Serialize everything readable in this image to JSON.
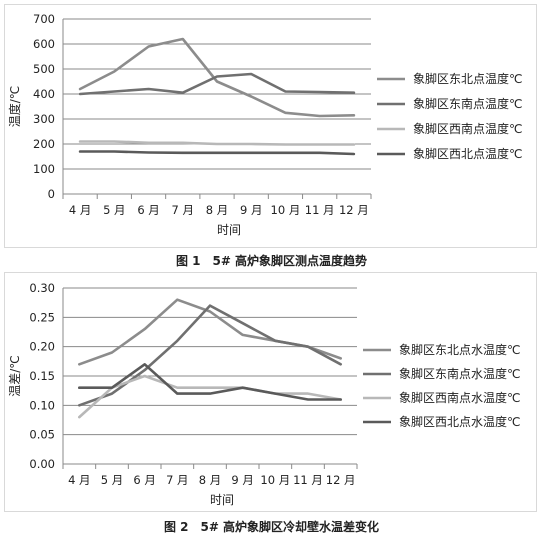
{
  "chart_data": [
    {
      "type": "line",
      "caption": "图 1　5# 高炉象脚区测点温度趋势",
      "xlabel": "时间",
      "ylabel": "温度/℃",
      "categories": [
        "4 月",
        "5 月",
        "6 月",
        "7 月",
        "8 月",
        "9 月",
        "10 月",
        "11 月",
        "12 月"
      ],
      "ylim": [
        0,
        700
      ],
      "yticks": [
        "0",
        "100",
        "200",
        "300",
        "400",
        "500",
        "600",
        "700"
      ],
      "grid": true,
      "legend_position": "right",
      "series": [
        {
          "name": "象脚区东北点温度℃",
          "color": "#8c8c8c",
          "values": [
            420,
            490,
            590,
            620,
            450,
            390,
            325,
            312,
            315
          ]
        },
        {
          "name": "象脚区东南点温度℃",
          "color": "#707070",
          "values": [
            400,
            410,
            420,
            405,
            470,
            480,
            410,
            408,
            405
          ]
        },
        {
          "name": "象脚区西南点温度℃",
          "color": "#b8b8b8",
          "values": [
            210,
            210,
            205,
            205,
            200,
            200,
            198,
            198,
            198
          ]
        },
        {
          "name": "象脚区西北点温度℃",
          "color": "#5a5a5a",
          "values": [
            170,
            170,
            166,
            165,
            165,
            165,
            165,
            165,
            160
          ]
        }
      ]
    },
    {
      "type": "line",
      "caption": "图 2　5# 高炉象脚区冷却壁水温差变化",
      "xlabel": "时间",
      "ylabel": "温差/℃",
      "categories": [
        "4 月",
        "5 月",
        "6 月",
        "7 月",
        "8 月",
        "9 月",
        "10 月",
        "11 月",
        "12 月"
      ],
      "ylim": [
        0,
        0.3
      ],
      "yticks": [
        "0.00",
        "0.05",
        "0.10",
        "0.15",
        "0.20",
        "0.25",
        "0.30"
      ],
      "grid": true,
      "legend_position": "right",
      "series": [
        {
          "name": "象脚区东北点水温度℃",
          "color": "#8c8c8c",
          "values": [
            0.17,
            0.19,
            0.23,
            0.28,
            0.26,
            0.22,
            0.21,
            0.2,
            0.18
          ]
        },
        {
          "name": "象脚区东南点水温度℃",
          "color": "#707070",
          "values": [
            0.1,
            0.12,
            0.16,
            0.21,
            0.27,
            0.24,
            0.21,
            0.2,
            0.17
          ]
        },
        {
          "name": "象脚区西南点水温度℃",
          "color": "#b8b8b8",
          "values": [
            0.08,
            0.13,
            0.15,
            0.13,
            0.13,
            0.13,
            0.12,
            0.12,
            0.11
          ]
        },
        {
          "name": "象脚区西北点水温度℃",
          "color": "#5a5a5a",
          "values": [
            0.13,
            0.13,
            0.17,
            0.12,
            0.12,
            0.13,
            0.12,
            0.11,
            0.11
          ]
        }
      ]
    }
  ]
}
